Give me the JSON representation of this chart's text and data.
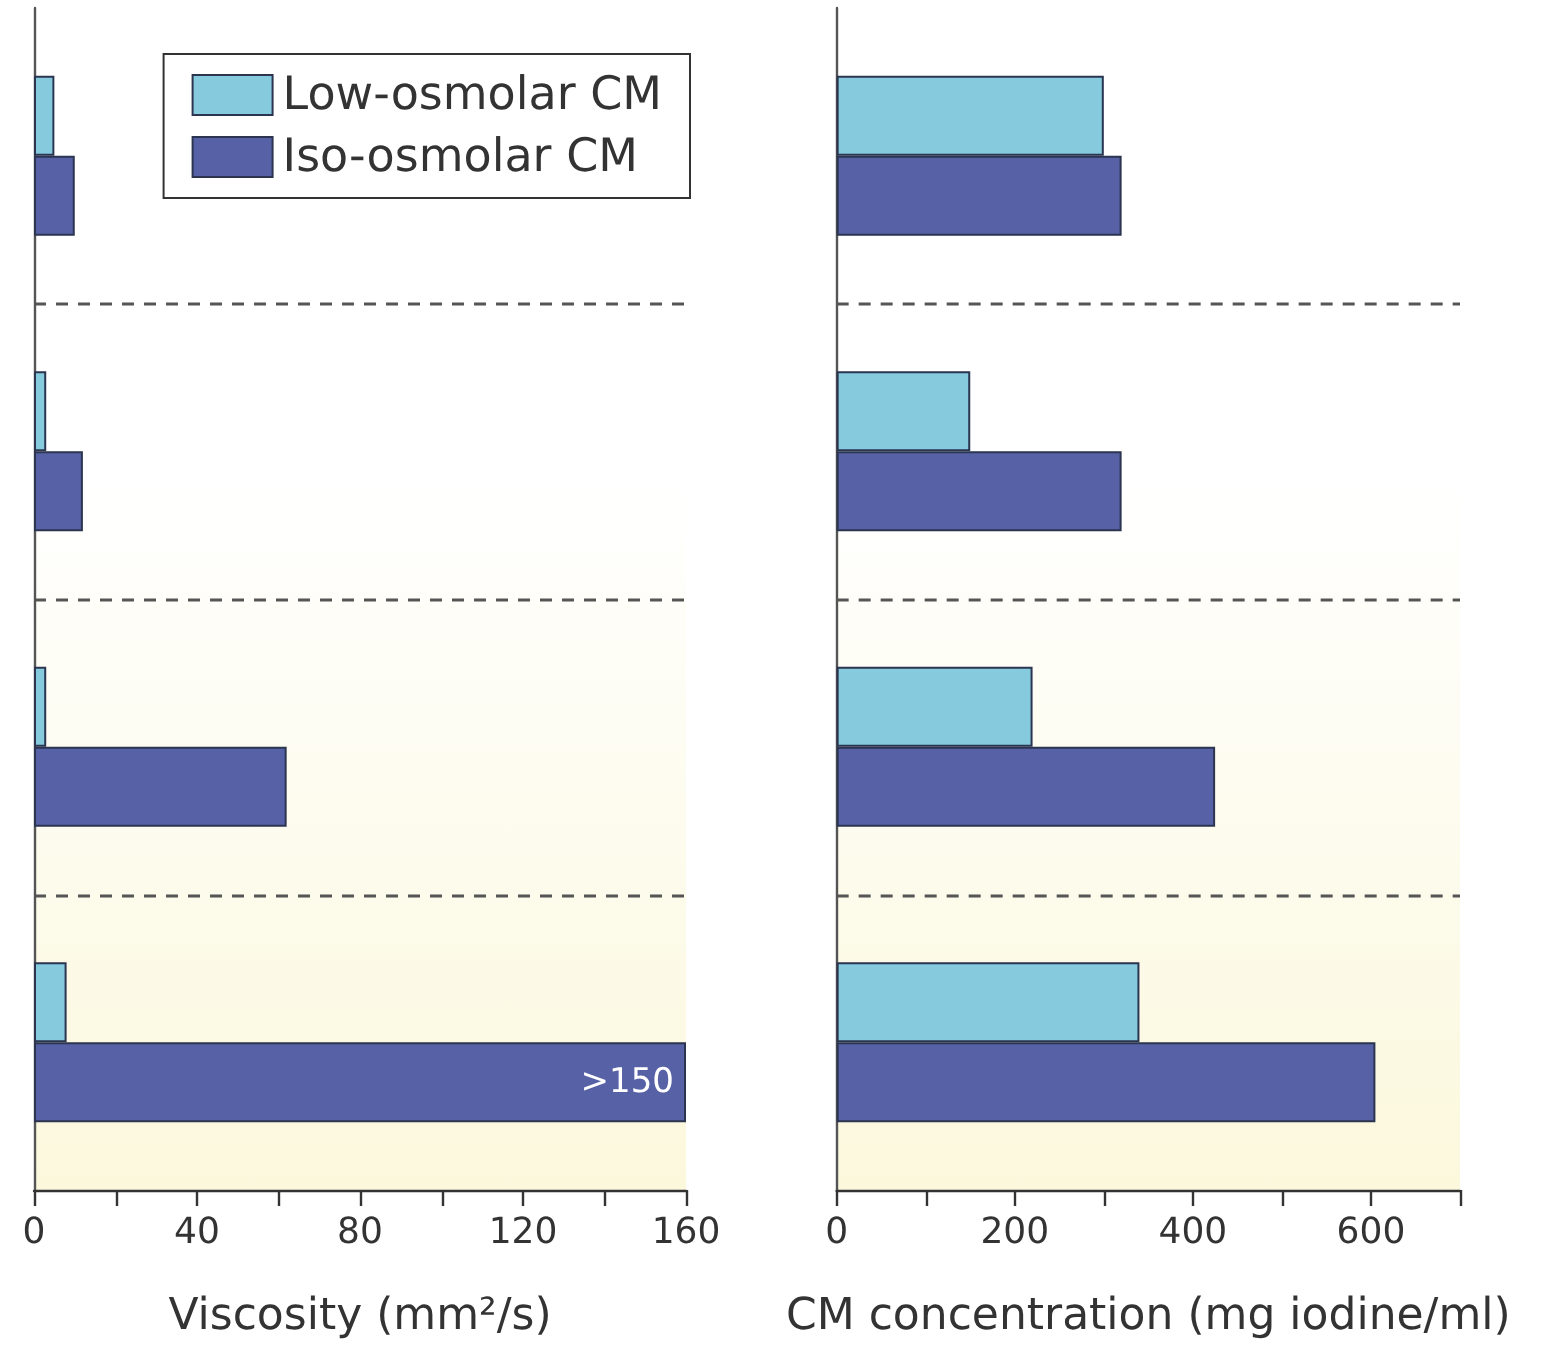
{
  "chart_data": [
    {
      "type": "bar",
      "orientation": "horizontal",
      "categories": [
        null,
        null,
        null,
        null
      ],
      "series": [
        {
          "name": "Low-osmolar CM",
          "color": "#86cade",
          "values": [
            5,
            3,
            3,
            8
          ]
        },
        {
          "name": "Iso-osmolar CM",
          "color": "#5761a5",
          "values": [
            10,
            12,
            62,
            160
          ],
          "value_labels": [
            null,
            null,
            null,
            ">150"
          ]
        }
      ],
      "xlabel": "Viscosity (mm²/s)",
      "xlim": [
        0,
        160
      ],
      "xticks": [
        0,
        {
          "value": 20,
          "label": null
        },
        40,
        {
          "value": 60,
          "label": null
        },
        80,
        {
          "value": 100,
          "label": null
        },
        120,
        {
          "value": 140,
          "label": null
        },
        160
      ],
      "grid": "y",
      "legend": "top right"
    },
    {
      "type": "bar",
      "orientation": "horizontal",
      "categories": [
        null,
        null,
        null,
        null
      ],
      "series": [
        {
          "color": "#86cade",
          "values": [
            300,
            150,
            220,
            340
          ]
        },
        {
          "color": "#5761a5",
          "values": [
            320,
            320,
            425,
            605
          ]
        }
      ],
      "xlabel": "CM concentration (mg iodine/ml)",
      "xlim": [
        0,
        700
      ],
      "xticks": [
        0,
        {
          "value": 100,
          "label": null
        },
        200,
        {
          "value": 300,
          "label": null
        },
        400,
        {
          "value": 500,
          "label": null
        },
        600,
        {
          "value": 700,
          "label": null
        }
      ],
      "grid": "y",
      "legend": false
    }
  ]
}
